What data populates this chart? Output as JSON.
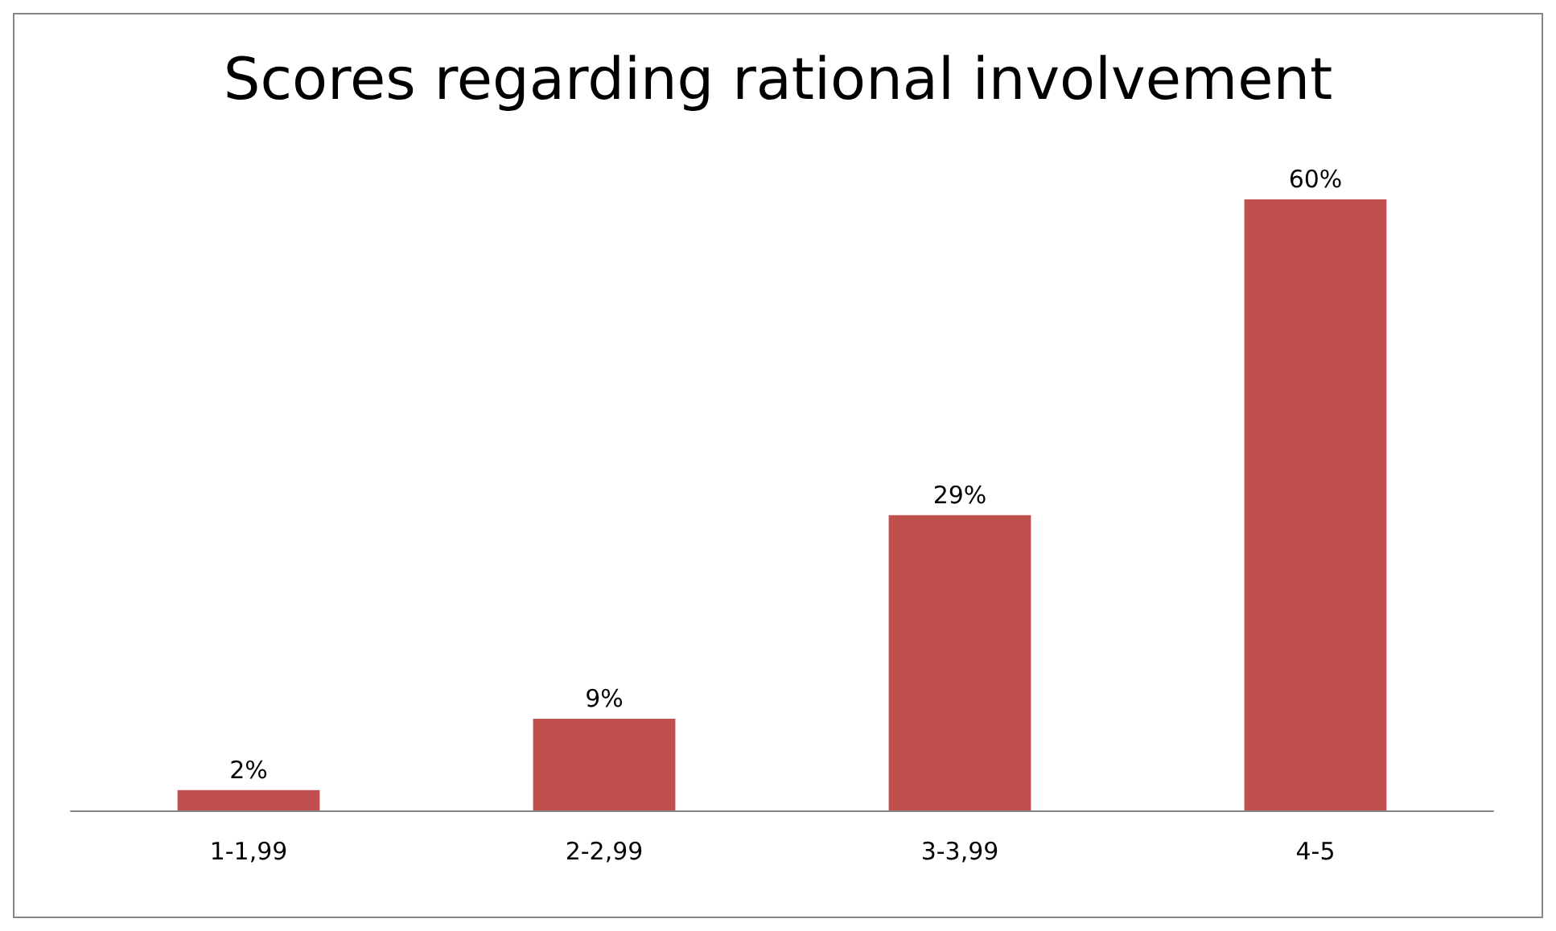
{
  "chart_data": {
    "type": "bar",
    "title": "Scores regarding rational involvement",
    "categories": [
      "1-1,99",
      "2-2,99",
      "3-3,99",
      "4-5"
    ],
    "values": [
      2,
      9,
      29,
      60
    ],
    "value_labels": [
      "2%",
      "9%",
      "29%",
      "60%"
    ],
    "color": "#c0504d"
  }
}
